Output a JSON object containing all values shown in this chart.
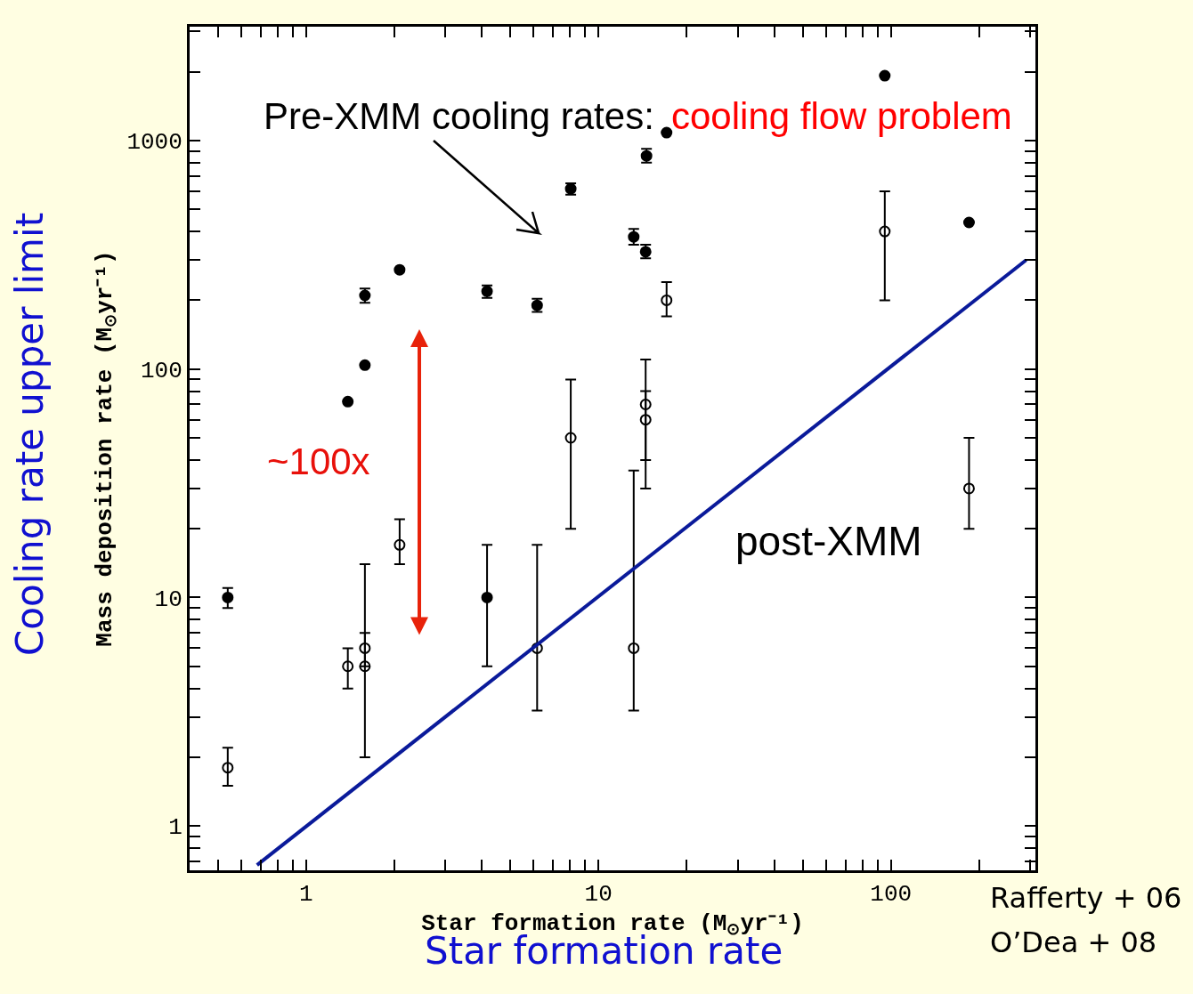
{
  "chart_data": {
    "type": "scatter",
    "xlabel": "Star formation rate (M$_{⊙}$yr⁻¹)",
    "ylabel": "Mass deposition rate (M$_{⊙}$yr⁻¹)",
    "log": "xy",
    "xlim": [
      0.4,
      312
    ],
    "ylim": [
      0.64,
      3150
    ],
    "xticks": [
      {
        "value": 0.4,
        "label": null
      },
      {
        "value": 0.5,
        "label": null
      },
      {
        "value": 0.6,
        "label": null
      },
      {
        "value": 0.7,
        "label": null
      },
      {
        "value": 0.8,
        "label": null
      },
      {
        "value": 0.9,
        "label": null
      },
      1,
      {
        "value": 2,
        "label": null
      },
      {
        "value": 3,
        "label": null
      },
      {
        "value": 4,
        "label": null
      },
      {
        "value": 5,
        "label": null
      },
      {
        "value": 6,
        "label": null
      },
      {
        "value": 7,
        "label": null
      },
      {
        "value": 8,
        "label": null
      },
      {
        "value": 9,
        "label": null
      },
      10,
      {
        "value": 20,
        "label": null
      },
      {
        "value": 30,
        "label": null
      },
      {
        "value": 40,
        "label": null
      },
      {
        "value": 50,
        "label": null
      },
      {
        "value": 60,
        "label": null
      },
      {
        "value": 70,
        "label": null
      },
      {
        "value": 80,
        "label": null
      },
      {
        "value": 90,
        "label": null
      },
      100,
      {
        "value": 200,
        "label": null
      },
      {
        "value": 300,
        "label": null
      }
    ],
    "yticks": [
      {
        "value": 0.7,
        "label": null
      },
      {
        "value": 0.8,
        "label": null
      },
      {
        "value": 0.9,
        "label": null
      },
      1,
      {
        "value": 2,
        "label": null
      },
      {
        "value": 3,
        "label": null
      },
      {
        "value": 4,
        "label": null
      },
      {
        "value": 5,
        "label": null
      },
      {
        "value": 6,
        "label": null
      },
      {
        "value": 7,
        "label": null
      },
      {
        "value": 8,
        "label": null
      },
      {
        "value": 9,
        "label": null
      },
      10,
      {
        "value": 20,
        "label": null
      },
      {
        "value": 30,
        "label": null
      },
      {
        "value": 40,
        "label": null
      },
      {
        "value": 50,
        "label": null
      },
      {
        "value": 60,
        "label": null
      },
      {
        "value": 70,
        "label": null
      },
      {
        "value": 80,
        "label": null
      },
      {
        "value": 90,
        "label": null
      },
      100,
      {
        "value": 200,
        "label": null
      },
      {
        "value": 300,
        "label": null
      },
      {
        "value": 400,
        "label": null
      },
      {
        "value": 500,
        "label": null
      },
      {
        "value": 600,
        "label": null
      },
      {
        "value": 700,
        "label": null
      },
      {
        "value": 800,
        "label": null
      },
      {
        "value": 900,
        "label": null
      },
      1000,
      {
        "value": 2000,
        "label": null
      },
      {
        "value": 3000,
        "label": null
      }
    ],
    "series": [
      {
        "marker": "circle",
        "color": "#000000",
        "x": [
          0.54,
          1.39,
          1.59,
          1.59,
          2.09,
          4.16,
          6.17,
          8.04,
          13.2,
          14.5,
          14.6,
          17.1,
          95.3,
          185,
          4.16
        ],
        "values": [
          10,
          72,
          104,
          210,
          272,
          219,
          190,
          615,
          379,
          326,
          857,
          1083,
          1923,
          438,
          10
        ],
        "errors": [
          [
            9,
            11
          ],
          null,
          null,
          [
            195,
            225
          ],
          null,
          [
            205,
            232
          ],
          [
            178,
            203
          ],
          [
            580,
            650
          ],
          [
            350,
            410
          ],
          [
            305,
            350
          ],
          [
            800,
            920
          ],
          null,
          null,
          null,
          [
            5,
            17
          ]
        ]
      },
      {
        "marker": "circle-open",
        "color": "#000000",
        "x": [
          0.54,
          1.39,
          1.59,
          1.59,
          2.09,
          6.17,
          8.04,
          13.2,
          14.5,
          14.5,
          17.1,
          95.3,
          185
        ],
        "values": [
          1.8,
          5,
          6,
          5,
          17,
          6,
          50,
          6,
          70,
          60,
          200,
          400,
          30
        ],
        "errors": [
          [
            1.5,
            2.2
          ],
          [
            4,
            6
          ],
          [
            5,
            7
          ],
          [
            2,
            14
          ],
          [
            14,
            22
          ],
          [
            3.2,
            17
          ],
          [
            20,
            90
          ],
          [
            3.2,
            36
          ],
          [
            40,
            110
          ],
          [
            30,
            80
          ],
          [
            170,
            240
          ],
          [
            200,
            600
          ],
          [
            20,
            50
          ]
        ]
      },
      {
        "type": "line",
        "color": "#0a1a9a",
        "x": [
          0.68,
          290
        ],
        "values": [
          0.675,
          300
        ]
      }
    ],
    "annotations": [
      "Pre-XMM cooling rates:",
      "cooling flow problem",
      "~100x",
      "post-XMM",
      "Cooling rate upper limit",
      "Star formation rate",
      "Rafferty + 06",
      "O’Dea + 08"
    ]
  }
}
